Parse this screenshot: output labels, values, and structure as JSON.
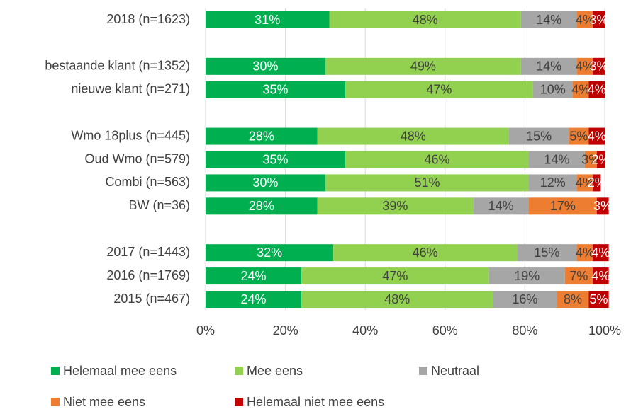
{
  "chart_data": {
    "type": "stacked-bar-horizontal",
    "categories": [
      "2018 (n=1623)",
      null,
      "bestaande klant (n=1352)",
      "nieuwe klant (n=271)",
      null,
      "Wmo 18plus (n=445)",
      "Oud Wmo (n=579)",
      "Combi (n=563)",
      "BW (n=36)",
      null,
      "2017 (n=1443)",
      "2016 (n=1769)",
      "2015 (n=467)"
    ],
    "series": [
      {
        "name": "Helemaal mee eens",
        "color": "#00b050",
        "label_color": "#ffffff",
        "values": [
          31,
          null,
          30,
          35,
          null,
          28,
          35,
          30,
          28,
          null,
          32,
          24,
          24
        ],
        "value_labels": [
          "31%",
          null,
          "30%",
          "35%",
          null,
          "28%",
          "35%",
          "30%",
          "28%",
          null,
          "32%",
          "24%",
          "24%"
        ]
      },
      {
        "name": "Mee eens",
        "color": "#92d050",
        "label_color": "#404040",
        "values": [
          48,
          null,
          49,
          47,
          null,
          48,
          46,
          51,
          39,
          null,
          46,
          47,
          48
        ],
        "value_labels": [
          "48%",
          null,
          "49%",
          "47%",
          null,
          "48%",
          "46%",
          "51%",
          "39%",
          null,
          "46%",
          "47%",
          "48%"
        ]
      },
      {
        "name": "Neutraal",
        "color": "#a6a6a6",
        "label_color": "#404040",
        "values": [
          14,
          null,
          14,
          10,
          null,
          15,
          14,
          12,
          14,
          null,
          15,
          19,
          16
        ],
        "value_labels": [
          "14%",
          null,
          "14%",
          "10%",
          null,
          "15%",
          "14%",
          "12%",
          "14%",
          null,
          "15%",
          "19%",
          "16%"
        ]
      },
      {
        "name": "Niet mee eens",
        "color": "#ed7d31",
        "label_color": "#404040",
        "values": [
          4,
          null,
          4,
          4,
          null,
          5,
          3,
          4,
          17,
          null,
          4,
          7,
          8
        ],
        "value_labels": [
          "4%",
          null,
          "4%",
          "4%",
          null,
          "5%",
          "3%",
          "4%",
          "17%",
          null,
          "4%",
          "7%",
          "8%"
        ]
      },
      {
        "name": "Helemaal niet mee eens",
        "color": "#c00000",
        "label_color": "#ffffff",
        "values": [
          3,
          null,
          3,
          4,
          null,
          4,
          2,
          2,
          3,
          null,
          4,
          4,
          5
        ],
        "value_labels": [
          "3%",
          null,
          "3%",
          "4%",
          null,
          "4%",
          "2%",
          "2%",
          "3%",
          null,
          "4%",
          "4%",
          "5%"
        ]
      }
    ],
    "xlim": [
      0,
      100
    ],
    "xticks": [
      {
        "value": 0,
        "label": "0%"
      },
      {
        "value": 20,
        "label": "20%"
      },
      {
        "value": 40,
        "label": "40%"
      },
      {
        "value": 60,
        "label": "60%"
      },
      {
        "value": 80,
        "label": "80%"
      },
      {
        "value": 100,
        "label": "100%"
      }
    ],
    "grid": true,
    "legend": "bottom"
  }
}
